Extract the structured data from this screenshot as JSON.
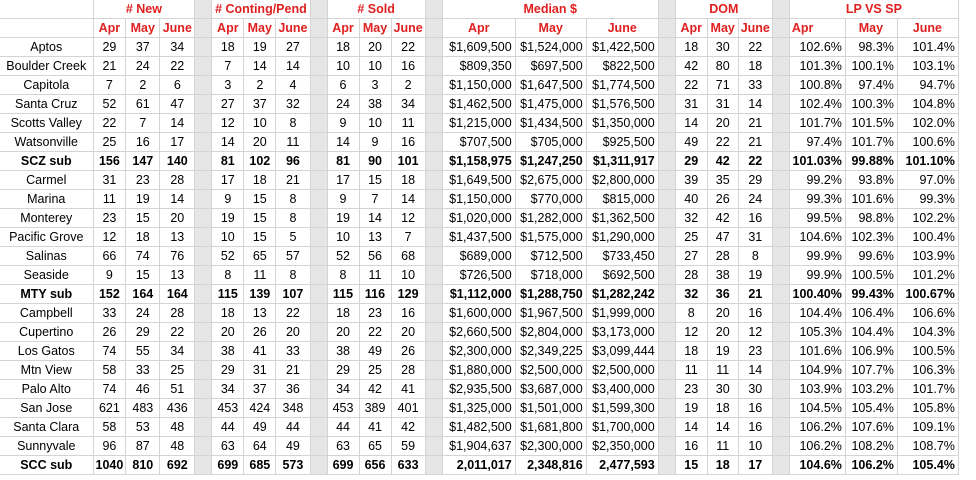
{
  "headers": {
    "new": "# New",
    "conting": "# Conting/Pend",
    "sold": "# Sold",
    "median": "Median $",
    "dom": "DOM",
    "lpsp": "LP VS SP"
  },
  "months": [
    "Apr",
    "May",
    "June"
  ],
  "rows": [
    {
      "name": "Aptos",
      "bold": false,
      "new": [
        "29",
        "37",
        "34"
      ],
      "conting": [
        "18",
        "19",
        "27"
      ],
      "sold": [
        "18",
        "20",
        "22"
      ],
      "median": [
        "$1,609,500",
        "$1,524,000",
        "$1,422,500"
      ],
      "dom": [
        "18",
        "30",
        "22"
      ],
      "lpsp": [
        "102.6%",
        "98.3%",
        "101.4%"
      ]
    },
    {
      "name": "Boulder Creek",
      "bold": false,
      "new": [
        "21",
        "24",
        "22"
      ],
      "conting": [
        "7",
        "14",
        "14"
      ],
      "sold": [
        "10",
        "10",
        "16"
      ],
      "median": [
        "$809,350",
        "$697,500",
        "$822,500"
      ],
      "dom": [
        "42",
        "80",
        "18"
      ],
      "lpsp": [
        "101.3%",
        "100.1%",
        "103.1%"
      ]
    },
    {
      "name": "Capitola",
      "bold": false,
      "new": [
        "7",
        "2",
        "6"
      ],
      "conting": [
        "3",
        "2",
        "4"
      ],
      "sold": [
        "6",
        "3",
        "2"
      ],
      "median": [
        "$1,150,000",
        "$1,647,500",
        "$1,774,500"
      ],
      "dom": [
        "22",
        "71",
        "33"
      ],
      "lpsp": [
        "100.8%",
        "97.4%",
        "94.7%"
      ]
    },
    {
      "name": "Santa Cruz",
      "bold": false,
      "new": [
        "52",
        "61",
        "47"
      ],
      "conting": [
        "27",
        "37",
        "32"
      ],
      "sold": [
        "24",
        "38",
        "34"
      ],
      "median": [
        "$1,462,500",
        "$1,475,000",
        "$1,576,500"
      ],
      "dom": [
        "31",
        "31",
        "14"
      ],
      "lpsp": [
        "102.4%",
        "100.3%",
        "104.8%"
      ]
    },
    {
      "name": "Scotts Valley",
      "bold": false,
      "new": [
        "22",
        "7",
        "14"
      ],
      "conting": [
        "12",
        "10",
        "8"
      ],
      "sold": [
        "9",
        "10",
        "11"
      ],
      "median": [
        "$1,215,000",
        "$1,434,500",
        "$1,350,000"
      ],
      "dom": [
        "14",
        "20",
        "21"
      ],
      "lpsp": [
        "101.7%",
        "101.5%",
        "102.0%"
      ]
    },
    {
      "name": "Watsonville",
      "bold": false,
      "new": [
        "25",
        "16",
        "17"
      ],
      "conting": [
        "14",
        "20",
        "11"
      ],
      "sold": [
        "14",
        "9",
        "16"
      ],
      "median": [
        "$707,500",
        "$705,000",
        "$925,500"
      ],
      "dom": [
        "49",
        "22",
        "21"
      ],
      "lpsp": [
        "97.4%",
        "101.7%",
        "100.6%"
      ]
    },
    {
      "name": "SCZ sub",
      "bold": true,
      "new": [
        "156",
        "147",
        "140"
      ],
      "conting": [
        "81",
        "102",
        "96"
      ],
      "sold": [
        "81",
        "90",
        "101"
      ],
      "median": [
        "$1,158,975",
        "$1,247,250",
        "$1,311,917"
      ],
      "dom": [
        "29",
        "42",
        "22"
      ],
      "lpsp": [
        "101.03%",
        "99.88%",
        "101.10%"
      ]
    },
    {
      "name": "Carmel",
      "bold": false,
      "new": [
        "31",
        "23",
        "28"
      ],
      "conting": [
        "17",
        "18",
        "21"
      ],
      "sold": [
        "17",
        "15",
        "18"
      ],
      "median": [
        "$1,649,500",
        "$2,675,000",
        "$2,800,000"
      ],
      "dom": [
        "39",
        "35",
        "29"
      ],
      "lpsp": [
        "99.2%",
        "93.8%",
        "97.0%"
      ]
    },
    {
      "name": "Marina",
      "bold": false,
      "new": [
        "11",
        "19",
        "14"
      ],
      "conting": [
        "9",
        "15",
        "8"
      ],
      "sold": [
        "9",
        "7",
        "14"
      ],
      "median": [
        "$1,150,000",
        "$770,000",
        "$815,000"
      ],
      "dom": [
        "40",
        "26",
        "24"
      ],
      "lpsp": [
        "99.3%",
        "101.6%",
        "99.3%"
      ]
    },
    {
      "name": "Monterey",
      "bold": false,
      "new": [
        "23",
        "15",
        "20"
      ],
      "conting": [
        "19",
        "15",
        "8"
      ],
      "sold": [
        "19",
        "14",
        "12"
      ],
      "median": [
        "$1,020,000",
        "$1,282,000",
        "$1,362,500"
      ],
      "dom": [
        "32",
        "42",
        "16"
      ],
      "lpsp": [
        "99.5%",
        "98.8%",
        "102.2%"
      ]
    },
    {
      "name": "Pacific Grove",
      "bold": false,
      "new": [
        "12",
        "18",
        "13"
      ],
      "conting": [
        "10",
        "15",
        "5"
      ],
      "sold": [
        "10",
        "13",
        "7"
      ],
      "median": [
        "$1,437,500",
        "$1,575,000",
        "$1,290,000"
      ],
      "dom": [
        "25",
        "47",
        "31"
      ],
      "lpsp": [
        "104.6%",
        "102.3%",
        "100.4%"
      ]
    },
    {
      "name": "Salinas",
      "bold": false,
      "new": [
        "66",
        "74",
        "76"
      ],
      "conting": [
        "52",
        "65",
        "57"
      ],
      "sold": [
        "52",
        "56",
        "68"
      ],
      "median": [
        "$689,000",
        "$712,500",
        "$733,450"
      ],
      "dom": [
        "27",
        "28",
        "8"
      ],
      "lpsp": [
        "99.9%",
        "99.6%",
        "103.9%"
      ]
    },
    {
      "name": "Seaside",
      "bold": false,
      "new": [
        "9",
        "15",
        "13"
      ],
      "conting": [
        "8",
        "11",
        "8"
      ],
      "sold": [
        "8",
        "11",
        "10"
      ],
      "median": [
        "$726,500",
        "$718,000",
        "$692,500"
      ],
      "dom": [
        "28",
        "38",
        "19"
      ],
      "lpsp": [
        "99.9%",
        "100.5%",
        "101.2%"
      ]
    },
    {
      "name": "MTY sub",
      "bold": true,
      "new": [
        "152",
        "164",
        "164"
      ],
      "conting": [
        "115",
        "139",
        "107"
      ],
      "sold": [
        "115",
        "116",
        "129"
      ],
      "median": [
        "$1,112,000",
        "$1,288,750",
        "$1,282,242"
      ],
      "dom": [
        "32",
        "36",
        "21"
      ],
      "lpsp": [
        "100.40%",
        "99.43%",
        "100.67%"
      ]
    },
    {
      "name": "Campbell",
      "bold": false,
      "new": [
        "33",
        "24",
        "28"
      ],
      "conting": [
        "18",
        "13",
        "22"
      ],
      "sold": [
        "18",
        "23",
        "16"
      ],
      "median": [
        "$1,600,000",
        "$1,967,500",
        "$1,999,000"
      ],
      "dom": [
        "8",
        "20",
        "16"
      ],
      "lpsp": [
        "104.4%",
        "106.4%",
        "106.6%"
      ]
    },
    {
      "name": "Cupertino",
      "bold": false,
      "new": [
        "26",
        "29",
        "22"
      ],
      "conting": [
        "20",
        "26",
        "20"
      ],
      "sold": [
        "20",
        "22",
        "20"
      ],
      "median": [
        "$2,660,500",
        "$2,804,000",
        "$3,173,000"
      ],
      "dom": [
        "12",
        "20",
        "12"
      ],
      "lpsp": [
        "105.3%",
        "104.4%",
        "104.3%"
      ]
    },
    {
      "name": "Los Gatos",
      "bold": false,
      "new": [
        "74",
        "55",
        "34"
      ],
      "conting": [
        "38",
        "41",
        "33"
      ],
      "sold": [
        "38",
        "49",
        "26"
      ],
      "median": [
        "$2,300,000",
        "$2,349,225",
        "$3,099,444"
      ],
      "dom": [
        "18",
        "19",
        "23"
      ],
      "lpsp": [
        "101.6%",
        "106.9%",
        "100.5%"
      ]
    },
    {
      "name": "Mtn View",
      "bold": false,
      "new": [
        "58",
        "33",
        "25"
      ],
      "conting": [
        "29",
        "31",
        "21"
      ],
      "sold": [
        "29",
        "25",
        "28"
      ],
      "median": [
        "$1,880,000",
        "$2,500,000",
        "$2,500,000"
      ],
      "dom": [
        "11",
        "11",
        "14"
      ],
      "lpsp": [
        "104.9%",
        "107.7%",
        "106.3%"
      ]
    },
    {
      "name": "Palo Alto",
      "bold": false,
      "new": [
        "74",
        "46",
        "51"
      ],
      "conting": [
        "34",
        "37",
        "36"
      ],
      "sold": [
        "34",
        "42",
        "41"
      ],
      "median": [
        "$2,935,500",
        "$3,687,000",
        "$3,400,000"
      ],
      "dom": [
        "23",
        "30",
        "30"
      ],
      "lpsp": [
        "103.9%",
        "103.2%",
        "101.7%"
      ]
    },
    {
      "name": "San Jose",
      "bold": false,
      "new": [
        "621",
        "483",
        "436"
      ],
      "conting": [
        "453",
        "424",
        "348"
      ],
      "sold": [
        "453",
        "389",
        "401"
      ],
      "median": [
        "$1,325,000",
        "$1,501,000",
        "$1,599,300"
      ],
      "dom": [
        "19",
        "18",
        "16"
      ],
      "lpsp": [
        "104.5%",
        "105.4%",
        "105.8%"
      ]
    },
    {
      "name": "Santa Clara",
      "bold": false,
      "new": [
        "58",
        "53",
        "48"
      ],
      "conting": [
        "44",
        "49",
        "44"
      ],
      "sold": [
        "44",
        "41",
        "42"
      ],
      "median": [
        "$1,482,500",
        "$1,681,800",
        "$1,700,000"
      ],
      "dom": [
        "14",
        "14",
        "16"
      ],
      "lpsp": [
        "106.2%",
        "107.6%",
        "109.1%"
      ]
    },
    {
      "name": "Sunnyvale",
      "bold": false,
      "new": [
        "96",
        "87",
        "48"
      ],
      "conting": [
        "63",
        "64",
        "49"
      ],
      "sold": [
        "63",
        "65",
        "59"
      ],
      "median": [
        "$1,904,637",
        "$2,300,000",
        "$2,350,000"
      ],
      "dom": [
        "16",
        "11",
        "10"
      ],
      "lpsp": [
        "106.2%",
        "108.2%",
        "108.7%"
      ]
    },
    {
      "name": "SCC sub",
      "bold": true,
      "new": [
        "1040",
        "810",
        "692"
      ],
      "conting": [
        "699",
        "685",
        "573"
      ],
      "sold": [
        "699",
        "656",
        "633"
      ],
      "median": [
        "2,011,017",
        "2,348,816",
        "2,477,593"
      ],
      "dom": [
        "15",
        "18",
        "17"
      ],
      "lpsp": [
        "104.6%",
        "106.2%",
        "105.4%"
      ]
    }
  ]
}
